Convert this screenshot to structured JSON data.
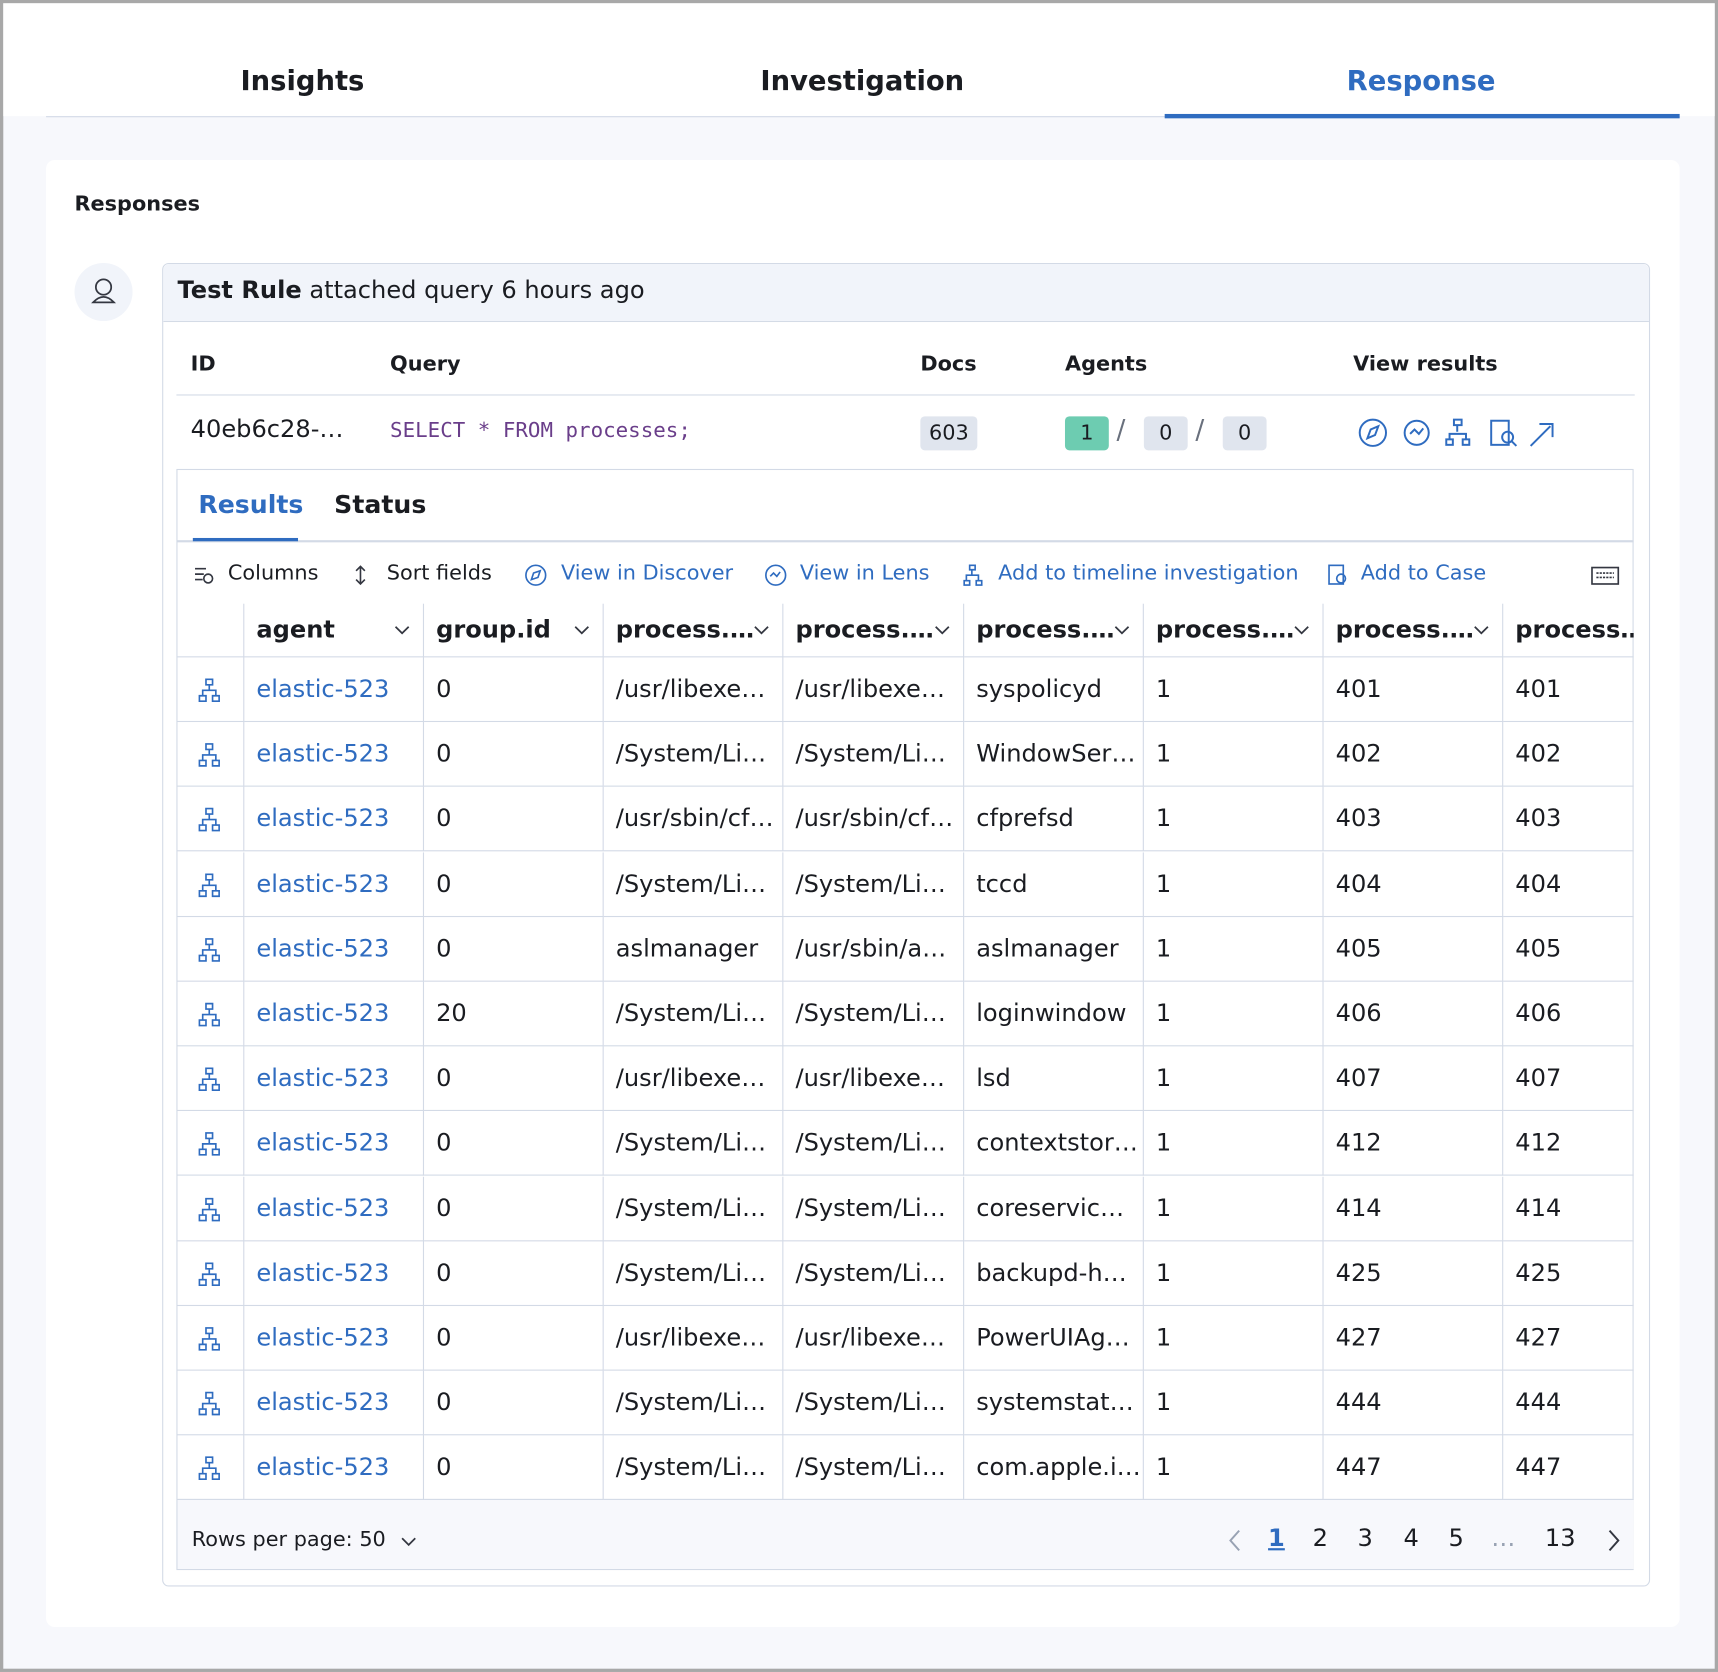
{
  "tabs": [
    "Insights",
    "Investigation",
    "Response"
  ],
  "section_title": "Responses",
  "comment": {
    "author": "Test Rule",
    "text": "attached query 6 hours ago"
  },
  "query_table": {
    "headers": [
      "ID",
      "Query",
      "Docs",
      "Agents",
      "View results"
    ],
    "row": {
      "id": "40eb6c28-…",
      "query": "SELECT * FROM processes;",
      "docs": "603",
      "agents": [
        "1",
        "0",
        "0"
      ]
    }
  },
  "result_tabs": [
    "Results",
    "Status"
  ],
  "toolbar": [
    "Columns",
    "Sort fields",
    "View in Discover",
    "View in Lens",
    "Add to timeline investigation",
    "Add to Case"
  ],
  "grid": {
    "headers": [
      "agent",
      "group.id",
      "process.…",
      "process.…",
      "process.…",
      "process.…",
      "process.…",
      "process…"
    ],
    "rows": [
      [
        "elastic-523",
        "0",
        "/usr/libexe…",
        "/usr/libexe…",
        "syspolicyd",
        "1",
        "401",
        "401"
      ],
      [
        "elastic-523",
        "0",
        "/System/Li…",
        "/System/Li…",
        "WindowSer…",
        "1",
        "402",
        "402"
      ],
      [
        "elastic-523",
        "0",
        "/usr/sbin/cf…",
        "/usr/sbin/cf…",
        "cfprefsd",
        "1",
        "403",
        "403"
      ],
      [
        "elastic-523",
        "0",
        "/System/Li…",
        "/System/Li…",
        "tccd",
        "1",
        "404",
        "404"
      ],
      [
        "elastic-523",
        "0",
        "aslmanager",
        "/usr/sbin/a…",
        "aslmanager",
        "1",
        "405",
        "405"
      ],
      [
        "elastic-523",
        "20",
        "/System/Li…",
        "/System/Li…",
        "loginwindow",
        "1",
        "406",
        "406"
      ],
      [
        "elastic-523",
        "0",
        "/usr/libexe…",
        "/usr/libexe…",
        "lsd",
        "1",
        "407",
        "407"
      ],
      [
        "elastic-523",
        "0",
        "/System/Li…",
        "/System/Li…",
        "contextstor…",
        "1",
        "412",
        "412"
      ],
      [
        "elastic-523",
        "0",
        "/System/Li…",
        "/System/Li…",
        "coreservic…",
        "1",
        "414",
        "414"
      ],
      [
        "elastic-523",
        "0",
        "/System/Li…",
        "/System/Li…",
        "backupd-h…",
        "1",
        "425",
        "425"
      ],
      [
        "elastic-523",
        "0",
        "/usr/libexe…",
        "/usr/libexe…",
        "PowerUIAg…",
        "1",
        "427",
        "427"
      ],
      [
        "elastic-523",
        "0",
        "/System/Li…",
        "/System/Li…",
        "systemstat…",
        "1",
        "444",
        "444"
      ],
      [
        "elastic-523",
        "0",
        "/System/Li…",
        "/System/Li…",
        "com.apple.i…",
        "1",
        "447",
        "447"
      ]
    ]
  },
  "pagination": {
    "rows_per_page": "Rows per page: 50",
    "pages": [
      "1",
      "2",
      "3",
      "4",
      "5",
      "…",
      "13"
    ]
  }
}
